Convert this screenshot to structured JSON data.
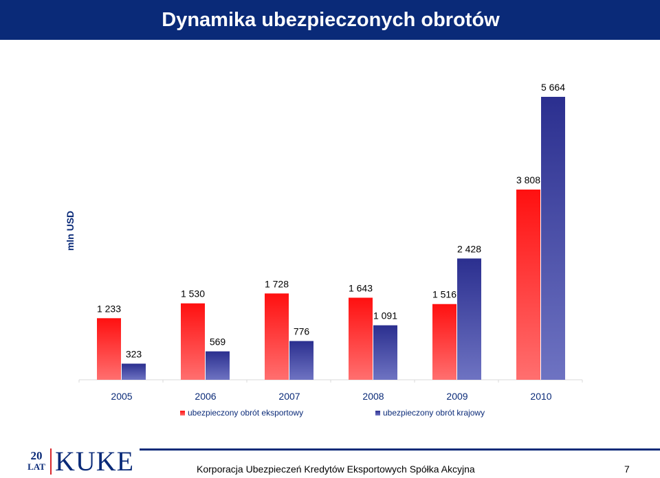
{
  "header": {
    "title": "Dynamika ubezpieczonych obrotów"
  },
  "chart_data": {
    "type": "bar",
    "title": "",
    "ylabel": "mln USD",
    "xlabel": "",
    "ylim": [
      0,
      5664
    ],
    "categories": [
      "2005",
      "2006",
      "2007",
      "2008",
      "2009",
      "2010"
    ],
    "series": [
      {
        "name": "ubezpieczony obrót eksportowy",
        "values": [
          1233,
          1530,
          1728,
          1643,
          1516,
          3808
        ],
        "labels": [
          "1 233",
          "1 530",
          "1 728",
          "1 643",
          "1 516",
          "3 808"
        ],
        "color_top": "#ff1010",
        "color_bottom": "#ff6f6f"
      },
      {
        "name": "ubezpieczony obrót krajowy",
        "values": [
          323,
          569,
          776,
          1091,
          2428,
          5664
        ],
        "labels": [
          "323",
          "569",
          "776",
          "1 091",
          "2 428",
          "5 664"
        ],
        "color_top": "#2b2f8f",
        "color_bottom": "#6e73c2"
      }
    ],
    "legend_position": "bottom",
    "grid": false
  },
  "footer": {
    "logo_number": "20",
    "logo_lat": "LAT",
    "logo_text": "KUKE",
    "company": "Korporacja Ubezpieczeń Kredytów Eksportowych Spółka Akcyjna",
    "page_number": "7"
  }
}
